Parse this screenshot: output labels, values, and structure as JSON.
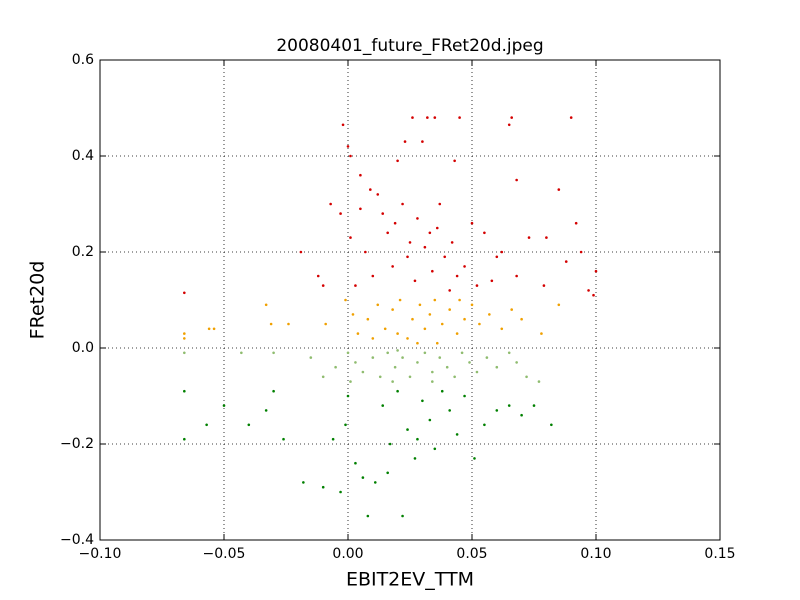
{
  "chart_data": {
    "type": "scatter",
    "title": "20080401_future_FRet20d.jpeg",
    "x_label": "EBIT2EV_TTM",
    "y_label": "FRet20d",
    "xlim": [
      -0.1,
      0.15
    ],
    "xticks": [
      {
        "value": -0.1,
        "label": "−0.10"
      },
      {
        "value": -0.05,
        "label": "−0.05"
      },
      {
        "value": 0,
        "label": "0.00"
      },
      {
        "value": 0.05,
        "label": "0.05"
      },
      {
        "value": 0.1,
        "label": "0.10"
      },
      {
        "value": 0.15,
        "label": "0.15"
      }
    ],
    "ylim": [
      -0.4,
      0.6
    ],
    "yticks": [
      {
        "value": -0.4,
        "label": "−0.4"
      },
      {
        "value": -0.2,
        "label": "−0.2"
      },
      {
        "value": 0,
        "label": "0.0"
      },
      0.2,
      0.4,
      0.6
    ],
    "grid": true,
    "series": [
      {
        "color": "#d40000",
        "x": [
          -0.066,
          -0.002,
          0.0,
          0.001,
          0.005,
          0.009,
          0.012,
          0.02,
          0.023,
          0.026,
          0.03,
          0.032,
          0.035,
          0.045,
          0.065,
          0.066,
          0.09,
          0.068,
          0.085,
          0.043,
          -0.007,
          -0.003,
          0.005,
          0.014,
          0.022,
          0.028,
          0.036,
          0.042,
          0.05,
          0.055,
          0.062,
          0.073,
          0.08,
          0.092,
          0.094,
          0.1,
          0.099,
          0.097,
          0.079,
          0.068,
          0.058,
          0.047,
          0.039,
          0.031,
          0.025,
          0.018,
          0.01,
          0.003,
          -0.012,
          -0.019,
          -0.01,
          0.007,
          0.016,
          0.027,
          0.034,
          0.041,
          0.052,
          0.06,
          0.088,
          0.001,
          0.024,
          0.033,
          0.037,
          0.019,
          0.044
        ],
        "values": [
          0.115,
          0.465,
          0.42,
          0.4,
          0.36,
          0.33,
          0.32,
          0.39,
          0.43,
          0.48,
          0.43,
          0.48,
          0.48,
          0.48,
          0.465,
          0.48,
          0.48,
          0.35,
          0.33,
          0.39,
          0.3,
          0.28,
          0.29,
          0.28,
          0.3,
          0.27,
          0.25,
          0.22,
          0.26,
          0.24,
          0.2,
          0.23,
          0.23,
          0.26,
          0.2,
          0.16,
          0.11,
          0.12,
          0.13,
          0.15,
          0.14,
          0.17,
          0.19,
          0.21,
          0.22,
          0.17,
          0.15,
          0.13,
          0.15,
          0.2,
          0.13,
          0.2,
          0.24,
          0.14,
          0.16,
          0.12,
          0.13,
          0.19,
          0.18,
          0.23,
          0.19,
          0.24,
          0.3,
          0.26,
          0.15
        ]
      },
      {
        "color": "#f0a000",
        "x": [
          -0.066,
          -0.066,
          -0.056,
          -0.054,
          -0.033,
          -0.031,
          -0.024,
          -0.009,
          -0.001,
          0.002,
          0.004,
          0.008,
          0.012,
          0.015,
          0.018,
          0.021,
          0.024,
          0.026,
          0.029,
          0.031,
          0.033,
          0.036,
          0.038,
          0.041,
          0.044,
          0.047,
          0.05,
          0.053,
          0.057,
          0.062,
          0.066,
          0.07,
          0.078,
          0.085,
          0.02,
          0.028,
          0.035,
          0.01,
          0.045
        ],
        "values": [
          0.03,
          0.02,
          0.04,
          0.04,
          0.09,
          0.05,
          0.05,
          0.05,
          0.1,
          0.07,
          0.03,
          0.06,
          0.09,
          0.04,
          0.08,
          0.1,
          0.02,
          0.06,
          0.09,
          0.04,
          0.07,
          0.01,
          0.05,
          0.08,
          0.03,
          0.06,
          0.09,
          0.05,
          0.07,
          0.04,
          0.08,
          0.06,
          0.03,
          0.09,
          0.03,
          0.01,
          0.1,
          0.02,
          0.1
        ]
      },
      {
        "color": "#8fbc6f",
        "x": [
          -0.066,
          -0.043,
          -0.03,
          -0.015,
          -0.01,
          -0.005,
          0.0,
          0.003,
          0.006,
          0.01,
          0.013,
          0.016,
          0.019,
          0.022,
          0.025,
          0.028,
          0.031,
          0.034,
          0.037,
          0.04,
          0.043,
          0.046,
          0.049,
          0.052,
          0.056,
          0.06,
          0.065,
          0.068,
          0.072,
          0.077,
          0.001,
          0.018,
          0.034,
          0.02
        ],
        "values": [
          -0.01,
          -0.01,
          -0.01,
          -0.02,
          -0.06,
          -0.04,
          -0.01,
          -0.03,
          -0.05,
          -0.02,
          -0.06,
          -0.01,
          -0.04,
          -0.02,
          -0.06,
          -0.03,
          -0.01,
          -0.05,
          -0.02,
          -0.04,
          -0.06,
          -0.01,
          -0.03,
          -0.05,
          -0.02,
          -0.04,
          -0.01,
          -0.03,
          -0.06,
          -0.07,
          -0.07,
          -0.07,
          -0.07,
          -0.005
        ]
      },
      {
        "color": "#008000",
        "x": [
          -0.066,
          -0.066,
          -0.057,
          -0.05,
          -0.04,
          -0.033,
          -0.026,
          -0.018,
          -0.01,
          -0.006,
          -0.003,
          -0.001,
          0.0,
          0.003,
          0.006,
          0.008,
          0.011,
          0.014,
          0.017,
          0.02,
          0.022,
          0.024,
          0.027,
          0.03,
          0.033,
          0.035,
          0.038,
          0.041,
          0.044,
          0.047,
          0.051,
          0.055,
          0.06,
          0.065,
          0.07,
          0.075,
          0.082,
          -0.03,
          0.016,
          0.028
        ],
        "values": [
          -0.09,
          -0.19,
          -0.16,
          -0.12,
          -0.16,
          -0.13,
          -0.19,
          -0.28,
          -0.29,
          -0.19,
          -0.3,
          -0.16,
          -0.1,
          -0.24,
          -0.27,
          -0.35,
          -0.28,
          -0.12,
          -0.2,
          -0.09,
          -0.35,
          -0.17,
          -0.23,
          -0.11,
          -0.15,
          -0.21,
          -0.09,
          -0.13,
          -0.18,
          -0.1,
          -0.23,
          -0.16,
          -0.13,
          -0.12,
          -0.14,
          -0.12,
          -0.16,
          -0.09,
          -0.26,
          -0.19
        ]
      }
    ]
  }
}
